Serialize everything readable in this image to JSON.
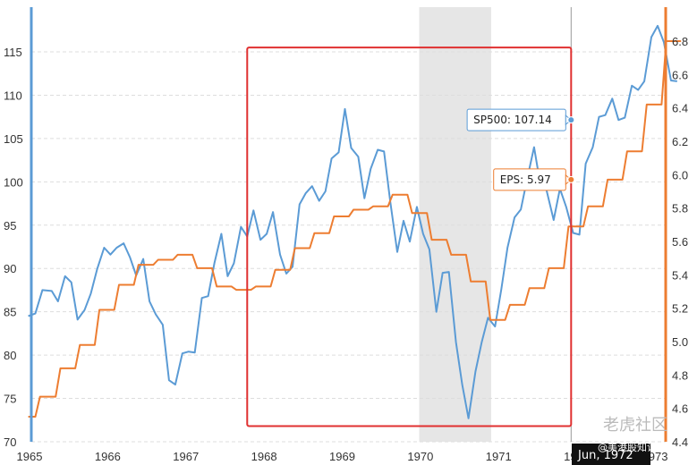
{
  "chart_data": {
    "type": "line",
    "title": "",
    "xlim": [
      1964.95,
      1973.1
    ],
    "x_ticks": [
      {
        "value": 1965,
        "label": "1965"
      },
      {
        "value": 1966,
        "label": "1966"
      },
      {
        "value": 1967,
        "label": "1967"
      },
      {
        "value": 1968,
        "label": "1968"
      },
      {
        "value": 1969,
        "label": "1969"
      },
      {
        "value": 1970,
        "label": "1970"
      },
      {
        "value": 1971,
        "label": "1971"
      },
      {
        "value": 1972,
        "label": "1972"
      },
      {
        "value": 1973,
        "label": "1973"
      }
    ],
    "y_left": {
      "ylim": [
        70,
        118
      ],
      "ticks": [
        70,
        75,
        80,
        85,
        90,
        95,
        100,
        105,
        110,
        115
      ],
      "color": "#5b9bd5"
    },
    "y_right": {
      "ylim": [
        4.4,
        6.9
      ],
      "ticks": [
        "4.4",
        "4.6",
        "4.8",
        "5.0",
        "5.2",
        "5.4",
        "5.6",
        "5.8",
        "6.0",
        "6.2",
        "6.4",
        "6.6",
        "6.8"
      ],
      "color": "#ed7d31"
    },
    "grid": true,
    "recession_band": {
      "x_start": 1969.95,
      "x_end": 1970.87,
      "color": "#e6e6e6"
    },
    "highlight_box": {
      "x_start": 1967.75,
      "x_end": 1972.5,
      "y_start": 71.8,
      "y_end": 115.5,
      "color": "#e03030"
    },
    "crosshair_x": 1972.5,
    "series": [
      {
        "name": "SP500",
        "axis": "left",
        "color": "#5b9bd5",
        "points": [
          [
            1964.95,
            84.5
          ],
          [
            1965.04,
            84.8
          ],
          [
            1965.13,
            87.5
          ],
          [
            1965.25,
            87.4
          ],
          [
            1965.33,
            86.2
          ],
          [
            1965.42,
            89.1
          ],
          [
            1965.5,
            88.4
          ],
          [
            1965.58,
            84.1
          ],
          [
            1965.67,
            85.2
          ],
          [
            1965.75,
            87.1
          ],
          [
            1965.83,
            89.9
          ],
          [
            1965.92,
            92.4
          ],
          [
            1966.0,
            91.6
          ],
          [
            1966.08,
            92.4
          ],
          [
            1966.17,
            92.9
          ],
          [
            1966.25,
            91.3
          ],
          [
            1966.33,
            89.2
          ],
          [
            1966.42,
            91.1
          ],
          [
            1966.5,
            86.2
          ],
          [
            1966.58,
            84.7
          ],
          [
            1966.67,
            83.5
          ],
          [
            1966.75,
            77.1
          ],
          [
            1966.83,
            76.6
          ],
          [
            1966.92,
            80.2
          ],
          [
            1967.0,
            80.4
          ],
          [
            1967.08,
            80.3
          ],
          [
            1967.17,
            86.6
          ],
          [
            1967.25,
            86.8
          ],
          [
            1967.33,
            90.6
          ],
          [
            1967.42,
            94.0
          ],
          [
            1967.5,
            89.1
          ],
          [
            1967.58,
            90.6
          ],
          [
            1967.67,
            94.8
          ],
          [
            1967.75,
            93.7
          ],
          [
            1967.83,
            96.7
          ],
          [
            1967.92,
            93.3
          ],
          [
            1968.0,
            94.0
          ],
          [
            1968.08,
            96.5
          ],
          [
            1968.17,
            91.6
          ],
          [
            1968.25,
            89.4
          ],
          [
            1968.33,
            90.2
          ],
          [
            1968.42,
            97.4
          ],
          [
            1968.5,
            98.7
          ],
          [
            1968.58,
            99.5
          ],
          [
            1968.67,
            97.8
          ],
          [
            1968.75,
            98.9
          ],
          [
            1968.83,
            102.7
          ],
          [
            1968.92,
            103.4
          ],
          [
            1969.0,
            108.4
          ],
          [
            1969.08,
            103.9
          ],
          [
            1969.17,
            102.9
          ],
          [
            1969.25,
            98.1
          ],
          [
            1969.33,
            101.5
          ],
          [
            1969.42,
            103.7
          ],
          [
            1969.5,
            103.5
          ],
          [
            1969.58,
            97.7
          ],
          [
            1969.67,
            91.9
          ],
          [
            1969.75,
            95.5
          ],
          [
            1969.83,
            93.1
          ],
          [
            1969.92,
            97.1
          ],
          [
            1970.0,
            94.0
          ],
          [
            1970.08,
            92.2
          ],
          [
            1970.17,
            85.0
          ],
          [
            1970.25,
            89.5
          ],
          [
            1970.33,
            89.6
          ],
          [
            1970.42,
            81.5
          ],
          [
            1970.5,
            76.6
          ],
          [
            1970.58,
            72.7
          ],
          [
            1970.67,
            78.1
          ],
          [
            1970.75,
            81.5
          ],
          [
            1970.83,
            84.3
          ],
          [
            1970.92,
            83.3
          ],
          [
            1971.0,
            87.6
          ],
          [
            1971.08,
            92.4
          ],
          [
            1971.17,
            95.9
          ],
          [
            1971.25,
            96.8
          ],
          [
            1971.33,
            100.3
          ],
          [
            1971.42,
            104.0
          ],
          [
            1971.5,
            99.7
          ],
          [
            1971.58,
            99.0
          ],
          [
            1971.67,
            95.6
          ],
          [
            1971.75,
            99.2
          ],
          [
            1971.83,
            97.1
          ],
          [
            1971.92,
            94.1
          ],
          [
            1972.0,
            93.9
          ],
          [
            1972.08,
            102.1
          ],
          [
            1972.17,
            104.0
          ],
          [
            1972.25,
            107.5
          ],
          [
            1972.33,
            107.7
          ],
          [
            1972.42,
            109.6
          ],
          [
            1972.5,
            107.14
          ],
          [
            1972.58,
            107.4
          ],
          [
            1972.67,
            111.1
          ],
          [
            1972.75,
            110.6
          ],
          [
            1972.83,
            111.6
          ],
          [
            1972.92,
            116.7
          ],
          [
            1973.0,
            118.0
          ],
          [
            1973.08,
            116.1
          ],
          [
            1973.17,
            111.7
          ],
          [
            1973.25,
            111.6
          ]
        ]
      },
      {
        "name": "EPS",
        "axis": "right",
        "color": "#ed7d31",
        "points": [
          [
            1964.95,
            4.55
          ],
          [
            1965.04,
            4.55
          ],
          [
            1965.1,
            4.67
          ],
          [
            1965.3,
            4.67
          ],
          [
            1965.36,
            4.84
          ],
          [
            1965.55,
            4.84
          ],
          [
            1965.61,
            4.98
          ],
          [
            1965.8,
            4.98
          ],
          [
            1965.86,
            5.19
          ],
          [
            1966.05,
            5.19
          ],
          [
            1966.11,
            5.34
          ],
          [
            1966.3,
            5.34
          ],
          [
            1966.36,
            5.46
          ],
          [
            1966.55,
            5.46
          ],
          [
            1966.61,
            5.49
          ],
          [
            1966.8,
            5.49
          ],
          [
            1966.86,
            5.52
          ],
          [
            1967.05,
            5.52
          ],
          [
            1967.11,
            5.44
          ],
          [
            1967.3,
            5.44
          ],
          [
            1967.36,
            5.33
          ],
          [
            1967.55,
            5.33
          ],
          [
            1967.61,
            5.31
          ],
          [
            1967.8,
            5.31
          ],
          [
            1967.86,
            5.33
          ],
          [
            1968.05,
            5.33
          ],
          [
            1968.11,
            5.43
          ],
          [
            1968.3,
            5.43
          ],
          [
            1968.36,
            5.56
          ],
          [
            1968.55,
            5.56
          ],
          [
            1968.61,
            5.65
          ],
          [
            1968.8,
            5.65
          ],
          [
            1968.86,
            5.75
          ],
          [
            1969.05,
            5.75
          ],
          [
            1969.11,
            5.79
          ],
          [
            1969.3,
            5.79
          ],
          [
            1969.36,
            5.81
          ],
          [
            1969.55,
            5.81
          ],
          [
            1969.61,
            5.88
          ],
          [
            1969.8,
            5.88
          ],
          [
            1969.86,
            5.77
          ],
          [
            1970.05,
            5.77
          ],
          [
            1970.11,
            5.61
          ],
          [
            1970.3,
            5.61
          ],
          [
            1970.36,
            5.52
          ],
          [
            1970.55,
            5.52
          ],
          [
            1970.61,
            5.36
          ],
          [
            1970.8,
            5.36
          ],
          [
            1970.86,
            5.13
          ],
          [
            1971.05,
            5.13
          ],
          [
            1971.11,
            5.22
          ],
          [
            1971.3,
            5.22
          ],
          [
            1971.36,
            5.32
          ],
          [
            1971.55,
            5.32
          ],
          [
            1971.61,
            5.44
          ],
          [
            1971.8,
            5.44
          ],
          [
            1971.86,
            5.69
          ],
          [
            1972.05,
            5.69
          ],
          [
            1972.11,
            5.81
          ],
          [
            1972.3,
            5.81
          ],
          [
            1972.36,
            5.97
          ],
          [
            1972.55,
            5.97
          ],
          [
            1972.61,
            6.14
          ],
          [
            1972.8,
            6.14
          ],
          [
            1972.86,
            6.42
          ],
          [
            1973.05,
            6.42
          ],
          [
            1973.11,
            6.8
          ],
          [
            1973.3,
            6.8
          ]
        ]
      }
    ],
    "tooltips": [
      {
        "label": "SP500: 107.14",
        "series": "SP500",
        "x": 1972.5,
        "y": 107.14
      },
      {
        "label": "EPS: 5.97",
        "series": "EPS",
        "x": 1972.5,
        "y": 5.97
      }
    ],
    "crosshair_label": "Jun, 1972"
  },
  "watermark": {
    "text": "老虎社区",
    "sub": "@美港股知识社"
  }
}
